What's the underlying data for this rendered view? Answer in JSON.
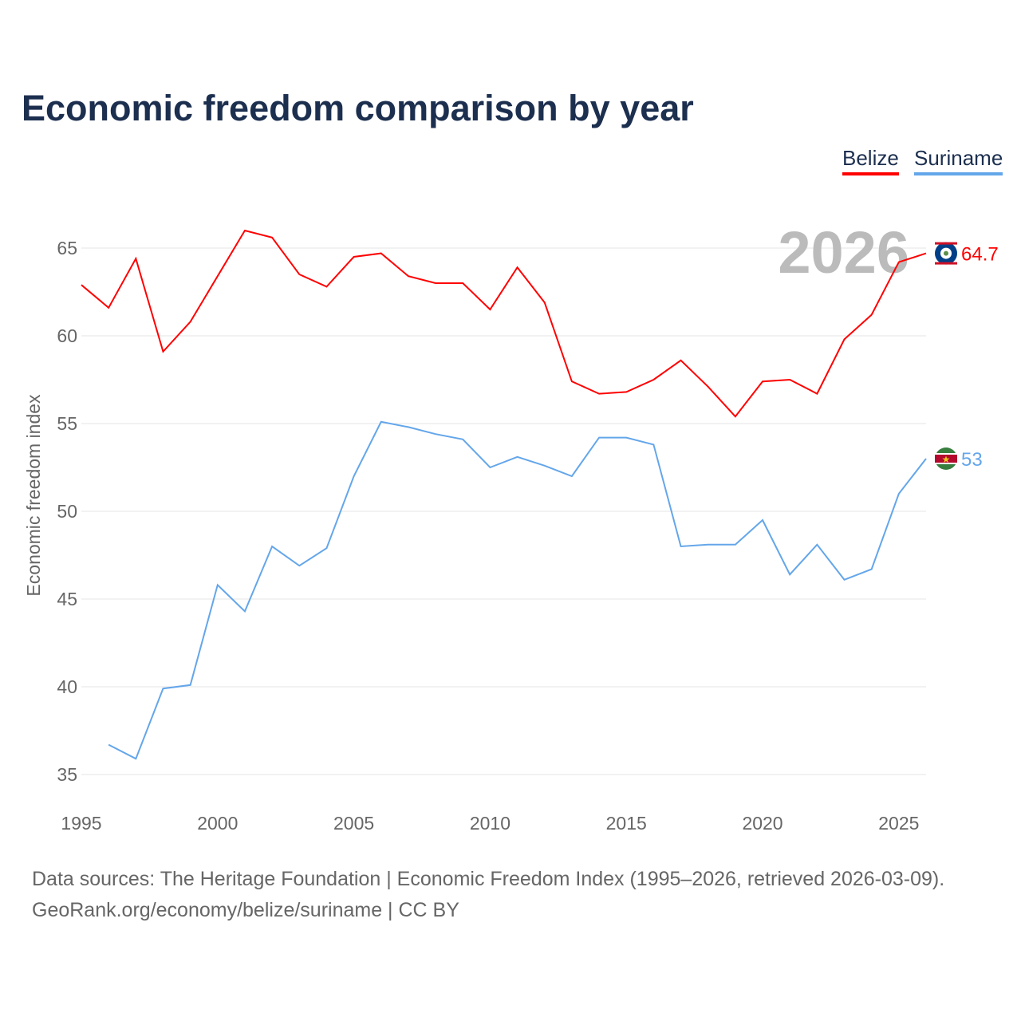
{
  "chart_data": {
    "type": "line",
    "title": "Economic freedom comparison by year",
    "xlabel": "",
    "ylabel": "Economic freedom index",
    "xlim": [
      1995,
      2026
    ],
    "ylim": [
      35,
      65
    ],
    "xticks": [
      1995,
      2000,
      2005,
      2010,
      2015,
      2020,
      2025
    ],
    "yticks": [
      35,
      40,
      45,
      50,
      55,
      60,
      65
    ],
    "grid": true,
    "legend_position": "top-right",
    "year_watermark": "2026",
    "series": [
      {
        "name": "Belize",
        "color": "#ff0000",
        "end_label": "64.7",
        "x": [
          1995,
          1996,
          1997,
          1998,
          1999,
          2000,
          2001,
          2002,
          2003,
          2004,
          2005,
          2006,
          2007,
          2008,
          2009,
          2010,
          2011,
          2012,
          2013,
          2014,
          2015,
          2016,
          2017,
          2018,
          2019,
          2020,
          2021,
          2022,
          2023,
          2024,
          2025,
          2026
        ],
        "values": [
          62.9,
          61.6,
          64.4,
          59.1,
          60.8,
          63.4,
          66.0,
          65.6,
          63.5,
          62.8,
          64.5,
          64.7,
          63.4,
          63.0,
          63.0,
          61.5,
          63.9,
          61.9,
          57.4,
          56.7,
          56.8,
          57.5,
          58.6,
          57.1,
          55.4,
          57.4,
          57.5,
          56.7,
          59.8,
          61.2,
          64.2,
          64.7
        ]
      },
      {
        "name": "Suriname",
        "color": "#64a6ea",
        "end_label": "53",
        "x": [
          1996,
          1997,
          1998,
          1999,
          2000,
          2001,
          2002,
          2003,
          2004,
          2005,
          2006,
          2007,
          2008,
          2009,
          2010,
          2011,
          2012,
          2013,
          2014,
          2015,
          2016,
          2017,
          2018,
          2019,
          2020,
          2021,
          2022,
          2023,
          2024,
          2025,
          2026
        ],
        "values": [
          36.7,
          35.9,
          39.9,
          40.1,
          45.8,
          44.3,
          48.0,
          46.9,
          47.9,
          52.0,
          55.1,
          54.8,
          54.4,
          54.1,
          52.5,
          53.1,
          52.6,
          52.0,
          54.2,
          54.2,
          53.8,
          48.0,
          48.1,
          48.1,
          49.5,
          46.4,
          48.1,
          46.1,
          46.7,
          51.0,
          53.0
        ]
      }
    ]
  },
  "footer": {
    "sources": "Data sources: The Heritage Foundation | Economic Freedom Index (1995–2026, retrieved 2026-03-09).",
    "credit": "GeoRank.org/economy/belize/suriname | CC BY"
  }
}
